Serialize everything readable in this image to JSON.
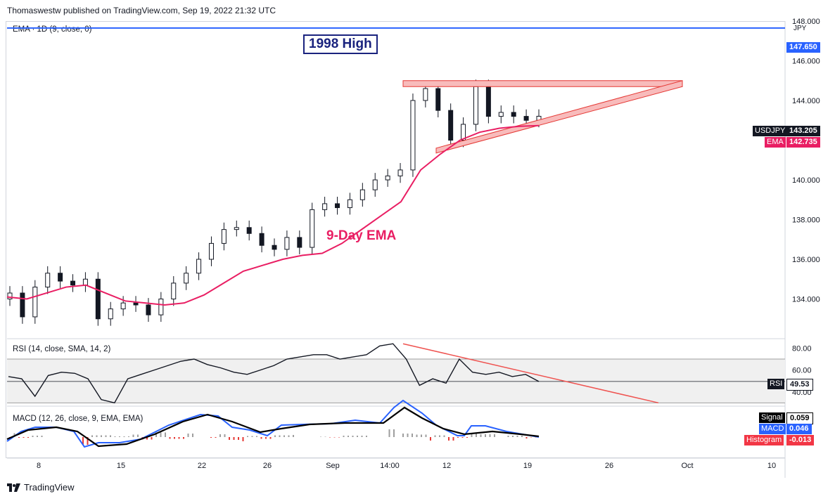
{
  "header": {
    "publisher_line": "Thomaswestw published on TradingView.com, Sep 19, 2022 21:32 UTC"
  },
  "footer": {
    "brand": "TradingView",
    "logo_icon": "tradingview-logo-icon"
  },
  "panes": {
    "price": {
      "indicator_label": "EMA · 1D (9, close, 0)",
      "currency": "JPY"
    },
    "rsi": {
      "indicator_label": "RSI (14, close, SMA, 14, 2)"
    },
    "macd": {
      "indicator_label": "MACD (12, 26, close, 9, EMA, EMA)"
    }
  },
  "annotations": {
    "high_label": "1998 High",
    "ema_label": "9-Day EMA"
  },
  "tags": {
    "high_value": "147.650",
    "symbol_name": "USDJPY",
    "symbol_value": "143.205",
    "ema_name": "EMA",
    "ema_value": "142.735",
    "rsi_name": "RSI",
    "rsi_value": "49.53",
    "signal_name": "Signal",
    "signal_value": "0.059",
    "macd_name": "MACD",
    "macd_value": "0.046",
    "hist_name": "Histogram",
    "hist_value": "-0.013"
  },
  "colors": {
    "candle": "#131722",
    "ema": "#e91e63",
    "high_line": "#2962ff",
    "annot": "#1a237e",
    "triangle_fill": "#f8bbbb",
    "triangle_stroke": "#e53935",
    "rsi_line": "#131722",
    "rsi_band": "#e0e0e0",
    "macd_line": "#2962ff",
    "signal_line": "#000000",
    "hist_pos": "#9e9e9e",
    "hist_neg": "#e53935",
    "hist_tag": "#f23645"
  },
  "chart_data": {
    "type": "candlestick",
    "symbol": "USDJPY",
    "timeframe": "1D",
    "x_ticks": [
      "8",
      "15",
      "22",
      "26",
      "Sep",
      "14:00",
      "12",
      "19",
      "26",
      "Oct",
      "10"
    ],
    "price_axis": {
      "ylim": [
        132.0,
        148.0
      ],
      "ticks": [
        "134.000",
        "136.000",
        "138.000",
        "140.000",
        "142.000",
        "144.000",
        "146.000",
        "148.000"
      ]
    },
    "rsi_axis": {
      "ylim": [
        27,
        88
      ],
      "ticks": [
        "40.00",
        "60.00",
        "80.00"
      ],
      "band": [
        30,
        70
      ]
    },
    "horizontal_levels": [
      {
        "label": "1998 High",
        "value": 147.65
      }
    ],
    "close_series": [
      134.3,
      133.1,
      134.6,
      135.3,
      134.9,
      134.7,
      135.0,
      133.0,
      133.5,
      133.8,
      133.7,
      133.2,
      134.0,
      134.8,
      135.3,
      136.0,
      136.8,
      137.5,
      137.6,
      137.3,
      136.7,
      136.5,
      137.1,
      136.6,
      138.5,
      138.8,
      138.6,
      139.0,
      139.5,
      140.0,
      140.2,
      140.5,
      144.0,
      144.6,
      143.5,
      142.0,
      142.8,
      144.7,
      143.2,
      143.4,
      143.2,
      143.0,
      143.205
    ],
    "ema_series": [
      134.1,
      134.0,
      134.3,
      134.6,
      134.7,
      134.3,
      133.9,
      133.8,
      133.7,
      133.8,
      134.2,
      134.8,
      135.4,
      135.7,
      136.0,
      136.2,
      136.3,
      136.8,
      137.5,
      138.2,
      138.9,
      140.5,
      141.3,
      142.0,
      142.4,
      142.6,
      142.7,
      142.735
    ],
    "rsi_series": [
      54,
      52,
      36,
      55,
      58,
      57,
      52,
      33,
      30,
      52,
      56,
      60,
      64,
      68,
      70,
      65,
      62,
      58,
      56,
      60,
      64,
      70,
      72,
      74,
      74,
      70,
      72,
      74,
      82,
      84,
      70,
      46,
      52,
      48,
      70,
      58,
      56,
      58,
      54,
      56,
      49.53
    ],
    "rsi_trendline": {
      "from": [
        84,
        "Sep 8"
      ],
      "to": [
        30,
        "Sep 30"
      ]
    },
    "macd": {
      "macd": 0.046,
      "signal": 0.059,
      "histogram": -0.013
    },
    "triangle_pattern": {
      "top": 145.0,
      "bottom_start": 141.6,
      "apex": 144.9
    }
  }
}
